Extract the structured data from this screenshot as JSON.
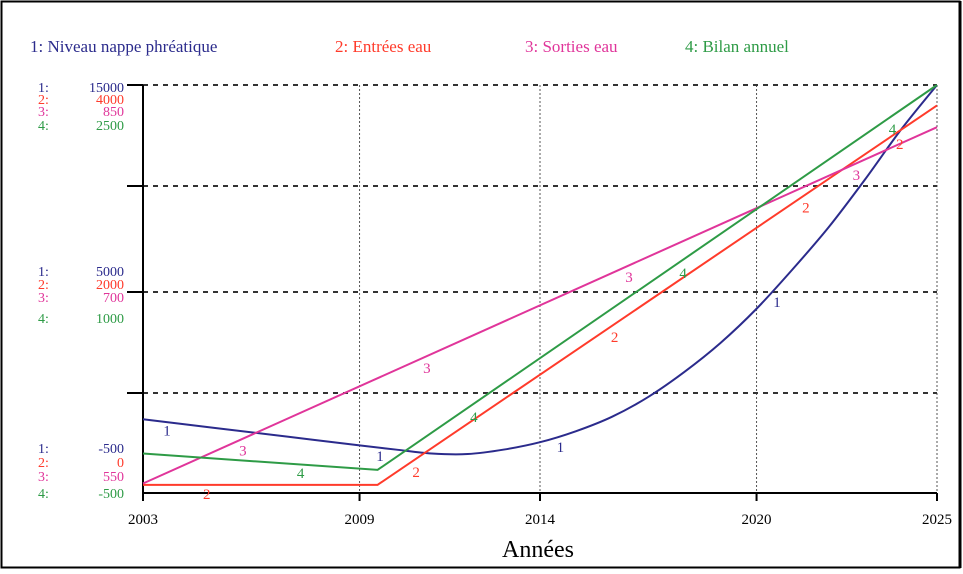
{
  "chart_data": {
    "type": "line",
    "xlabel": "Années",
    "x_ticks": [
      "2003",
      "2009",
      "2014",
      "2020",
      "2025"
    ],
    "x_tick_values": [
      2003,
      2009,
      2014,
      2020,
      2025
    ],
    "xlim": [
      2003,
      2025
    ],
    "grid": true,
    "legend_position": "top",
    "series": [
      {
        "id": "1",
        "name": "1: Niveau nappe phréatique",
        "color": "#2b2b8c",
        "axis_prefix": "1:",
        "axis_ticks": [
          "-500",
          "5000",
          "15000"
        ],
        "ylim": [
          -500,
          15000
        ],
        "marker_label": "1",
        "x": [
          2003,
          2005,
          2007,
          2009,
          2010,
          2011,
          2012,
          2013,
          2014,
          2015,
          2016,
          2017,
          2018,
          2019,
          2020,
          2021,
          2022,
          2023,
          2024,
          2025
        ],
        "y": [
          2300,
          1970,
          1640,
          1310,
          1150,
          1000,
          980,
          1150,
          1430,
          1850,
          2400,
          3150,
          4100,
          5200,
          6500,
          8000,
          9600,
          11400,
          13300,
          15000
        ],
        "label_x": [
          2003.5,
          2009.4,
          2014.4,
          2020.4
        ]
      },
      {
        "id": "2",
        "name": "2: Entrées eau",
        "color": "#ff3b2b",
        "axis_prefix": "2:",
        "axis_ticks": [
          "0",
          "2000",
          "4000"
        ],
        "ylim": [
          0,
          4000
        ],
        "marker_label": "2",
        "x": [
          2003,
          2009.5,
          2025
        ],
        "y": [
          80,
          80,
          3800
        ],
        "label_x": [
          2004.6,
          2010.4,
          2015.9,
          2021.2,
          2023.8
        ]
      },
      {
        "id": "3",
        "name": "3: Sorties eau",
        "color": "#e0359a",
        "axis_prefix": "3:",
        "axis_ticks": [
          "550",
          "700",
          "850"
        ],
        "ylim": [
          550,
          850
        ],
        "marker_label": "3",
        "x": [
          2003,
          2025
        ],
        "y": [
          557,
          819
        ],
        "label_x": [
          2005.6,
          2010.7,
          2016.3,
          2022.6
        ]
      },
      {
        "id": "4",
        "name": "4: Bilan annuel",
        "color": "#2e9b46",
        "axis_prefix": "4:",
        "axis_ticks": [
          "-500",
          "1000",
          "2500"
        ],
        "ylim": [
          -500,
          2500
        ],
        "marker_label": "4",
        "x": [
          2003,
          2009.5,
          2025
        ],
        "y": [
          -210,
          -330,
          2500
        ],
        "label_x": [
          2007.2,
          2012.0,
          2017.8,
          2023.6
        ]
      }
    ]
  }
}
